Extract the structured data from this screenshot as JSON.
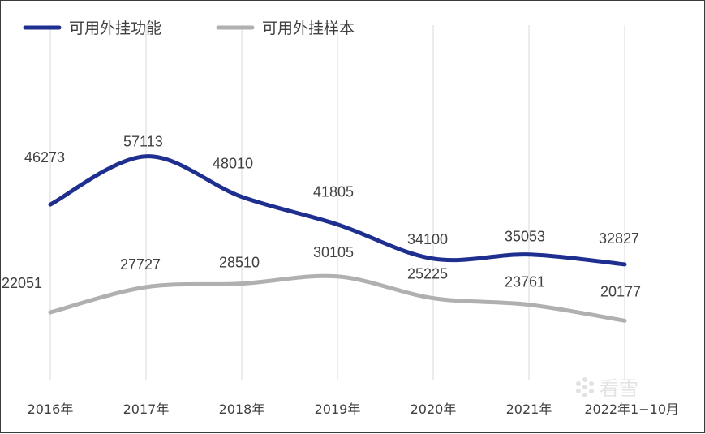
{
  "chart_data": {
    "type": "line",
    "categories": [
      "2016年",
      "2017年",
      "2018年",
      "2019年",
      "2020年",
      "2021年",
      "2022年1−10月"
    ],
    "series": [
      {
        "name": "可用外挂功能",
        "color": "#1f2f8f",
        "values": [
          46273,
          57113,
          48010,
          41805,
          34100,
          35053,
          32827
        ]
      },
      {
        "name": "可用外挂样本",
        "color": "#b0b0b0",
        "values": [
          22051,
          27727,
          28510,
          30105,
          25225,
          23761,
          20177
        ]
      }
    ],
    "grid": "vertical",
    "legend": "top-left"
  },
  "watermark": "看雪"
}
